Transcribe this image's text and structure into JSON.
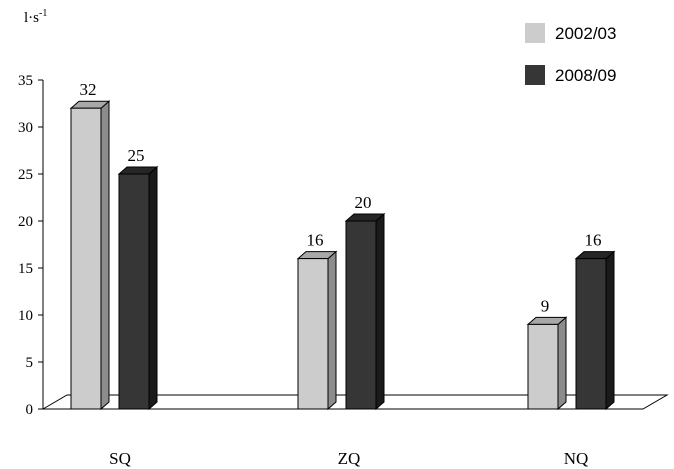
{
  "chart_data": {
    "type": "bar",
    "ylabel_base": "l·s",
    "ylabel_exp": "-1",
    "categories": [
      "SQ",
      "ZQ",
      "NQ"
    ],
    "series": [
      {
        "name": "2002/03",
        "values": [
          32,
          16,
          9
        ]
      },
      {
        "name": "2008/09",
        "values": [
          25,
          20,
          16
        ]
      }
    ],
    "ylim": [
      0,
      35
    ],
    "yticks": [
      0,
      5,
      10,
      15,
      20,
      25,
      30,
      35
    ],
    "legend_position": "top-right",
    "colors": {
      "series_0_front": "#cccccc",
      "series_0_side": "#8c8c8c",
      "series_0_top": "#a8a8a8",
      "series_1_front": "#363636",
      "series_1_side": "#1a1a1a",
      "series_1_top": "#262626",
      "floor": "#ffffff",
      "axis": "#000000"
    }
  }
}
